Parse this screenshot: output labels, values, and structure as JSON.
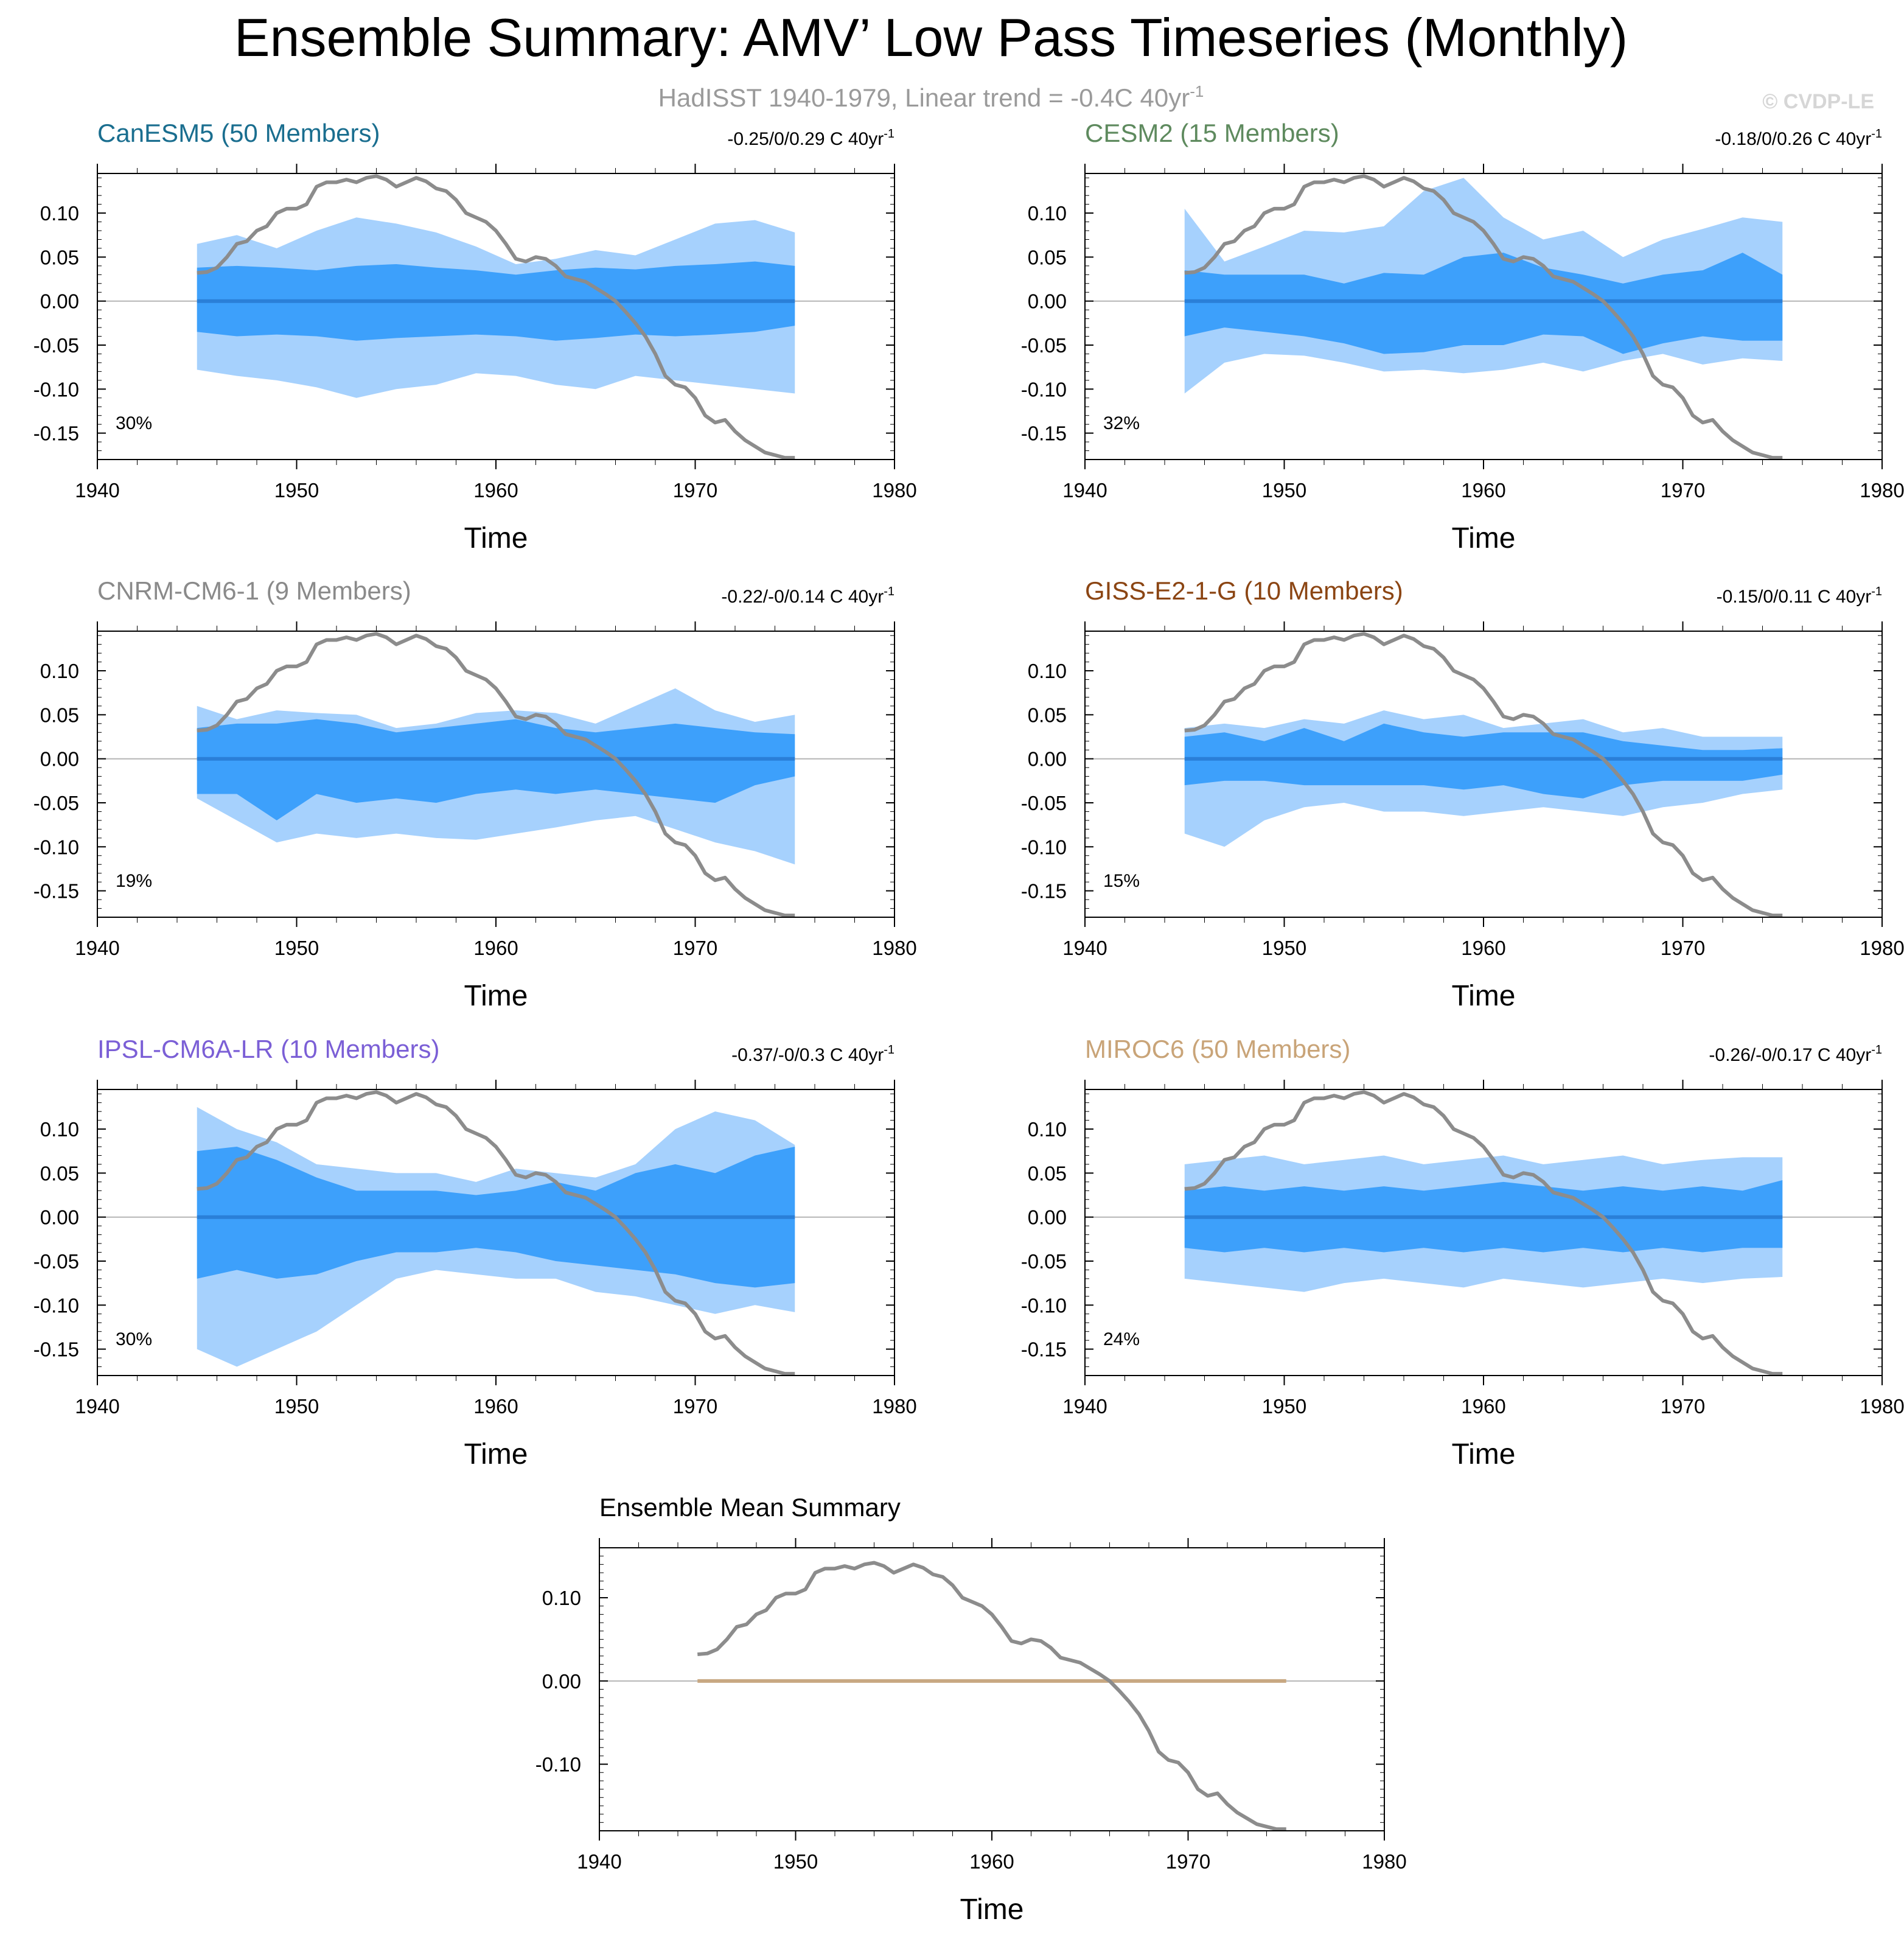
{
  "title": "Ensemble Summary: AMV’ Low Pass Timeseries (Monthly)",
  "subtitle": {
    "text": "HadISST 1940-1979, Linear trend = -0.4C 40yr",
    "superscript": "-1"
  },
  "watermark": "© CVDP-LE",
  "colors": {
    "outer_band": "#a6d1fd",
    "inner_band": "#3da0fb",
    "ensemble_mean": "#2a7fd8",
    "observations": "#8c8c8c",
    "summary_mean": "#c8a882"
  },
  "chart_data": [
    {
      "type": "area",
      "panel": "CanESM5",
      "title": "CanESM5 (50 Members)",
      "title_color": "#1a6e8f",
      "range_text": "-0.25/0/0.29 C 40yr",
      "range_sup": "-1",
      "percent": "30%",
      "xlabel": "Time",
      "xlim": [
        1940,
        1980
      ],
      "ylim": [
        -0.18,
        0.145
      ],
      "yticks": [
        "0.10",
        "0.05",
        "0.00",
        "-0.05",
        "-0.10",
        "-0.15"
      ],
      "ytick_values": [
        0.1,
        0.05,
        0.0,
        -0.05,
        -0.1,
        -0.15
      ],
      "xticks": [
        "1940",
        "1950",
        "1960",
        "1970",
        "1980"
      ],
      "xtick_values": [
        1940,
        1950,
        1960,
        1970,
        1980
      ],
      "x": [
        1945,
        1947,
        1949,
        1951,
        1953,
        1955,
        1957,
        1959,
        1961,
        1963,
        1965,
        1967,
        1969,
        1971,
        1973,
        1975
      ],
      "outer_upper": [
        0.065,
        0.075,
        0.06,
        0.08,
        0.095,
        0.088,
        0.078,
        0.062,
        0.042,
        0.048,
        0.058,
        0.052,
        0.07,
        0.088,
        0.092,
        0.078
      ],
      "outer_lower": [
        -0.078,
        -0.085,
        -0.09,
        -0.098,
        -0.11,
        -0.1,
        -0.095,
        -0.082,
        -0.085,
        -0.095,
        -0.1,
        -0.085,
        -0.09,
        -0.095,
        -0.1,
        -0.105
      ],
      "inner_upper": [
        0.038,
        0.04,
        0.038,
        0.035,
        0.04,
        0.042,
        0.038,
        0.035,
        0.03,
        0.035,
        0.038,
        0.036,
        0.04,
        0.042,
        0.045,
        0.04
      ],
      "inner_lower": [
        -0.035,
        -0.04,
        -0.038,
        -0.04,
        -0.045,
        -0.042,
        -0.04,
        -0.038,
        -0.04,
        -0.045,
        -0.042,
        -0.038,
        -0.04,
        -0.038,
        -0.035,
        -0.028
      ],
      "ensemble_mean": [
        0,
        0,
        0,
        0,
        0,
        0,
        0,
        0,
        0,
        0,
        0,
        0,
        0,
        0,
        0,
        0
      ]
    },
    {
      "type": "area",
      "panel": "CESM2",
      "title": "CESM2 (15 Members)",
      "title_color": "#5e8a5e",
      "range_text": "-0.18/0/0.26 C 40yr",
      "range_sup": "-1",
      "percent": "32%",
      "xlabel": "Time",
      "xlim": [
        1940,
        1980
      ],
      "ylim": [
        -0.18,
        0.145
      ],
      "yticks": [
        "0.10",
        "0.05",
        "0.00",
        "-0.05",
        "-0.10",
        "-0.15"
      ],
      "ytick_values": [
        0.1,
        0.05,
        0.0,
        -0.05,
        -0.1,
        -0.15
      ],
      "xticks": [
        "1940",
        "1950",
        "1960",
        "1970",
        "1980"
      ],
      "xtick_values": [
        1940,
        1950,
        1960,
        1970,
        1980
      ],
      "x": [
        1945,
        1947,
        1949,
        1951,
        1953,
        1955,
        1957,
        1959,
        1961,
        1963,
        1965,
        1967,
        1969,
        1971,
        1973,
        1975
      ],
      "outer_upper": [
        0.105,
        0.045,
        0.062,
        0.08,
        0.078,
        0.085,
        0.125,
        0.14,
        0.095,
        0.07,
        0.08,
        0.05,
        0.07,
        0.082,
        0.095,
        0.09
      ],
      "outer_lower": [
        -0.105,
        -0.07,
        -0.06,
        -0.062,
        -0.07,
        -0.08,
        -0.078,
        -0.082,
        -0.078,
        -0.07,
        -0.08,
        -0.068,
        -0.06,
        -0.072,
        -0.065,
        -0.068
      ],
      "inner_upper": [
        0.035,
        0.03,
        0.03,
        0.03,
        0.02,
        0.032,
        0.03,
        0.05,
        0.055,
        0.038,
        0.03,
        0.02,
        0.03,
        0.035,
        0.055,
        0.03
      ],
      "inner_lower": [
        -0.04,
        -0.03,
        -0.035,
        -0.04,
        -0.048,
        -0.06,
        -0.058,
        -0.05,
        -0.05,
        -0.038,
        -0.04,
        -0.06,
        -0.048,
        -0.04,
        -0.045,
        -0.045
      ],
      "ensemble_mean": [
        0,
        0,
        0,
        0,
        0,
        0,
        0,
        0,
        0,
        0,
        0,
        0,
        0,
        0,
        0,
        0
      ]
    },
    {
      "type": "area",
      "panel": "CNRM-CM6-1",
      "title": "CNRM-CM6-1 (9 Members)",
      "title_color": "#8a8a8a",
      "range_text": "-0.22/-0/0.14 C 40yr",
      "range_sup": "-1",
      "percent": "19%",
      "xlabel": "Time",
      "xlim": [
        1940,
        1980
      ],
      "ylim": [
        -0.18,
        0.145
      ],
      "yticks": [
        "0.10",
        "0.05",
        "0.00",
        "-0.05",
        "-0.10",
        "-0.15"
      ],
      "ytick_values": [
        0.1,
        0.05,
        0.0,
        -0.05,
        -0.1,
        -0.15
      ],
      "xticks": [
        "1940",
        "1950",
        "1960",
        "1970",
        "1980"
      ],
      "xtick_values": [
        1940,
        1950,
        1960,
        1970,
        1980
      ],
      "x": [
        1945,
        1947,
        1949,
        1951,
        1953,
        1955,
        1957,
        1959,
        1961,
        1963,
        1965,
        1967,
        1969,
        1971,
        1973,
        1975
      ],
      "outer_upper": [
        0.06,
        0.045,
        0.055,
        0.052,
        0.05,
        0.035,
        0.04,
        0.052,
        0.055,
        0.052,
        0.04,
        0.06,
        0.08,
        0.055,
        0.042,
        0.05
      ],
      "outer_lower": [
        -0.045,
        -0.07,
        -0.095,
        -0.085,
        -0.09,
        -0.085,
        -0.09,
        -0.092,
        -0.085,
        -0.078,
        -0.07,
        -0.065,
        -0.08,
        -0.095,
        -0.105,
        -0.12
      ],
      "inner_upper": [
        0.035,
        0.04,
        0.04,
        0.045,
        0.04,
        0.03,
        0.035,
        0.04,
        0.045,
        0.035,
        0.03,
        0.035,
        0.04,
        0.035,
        0.03,
        0.028
      ],
      "inner_lower": [
        -0.04,
        -0.04,
        -0.07,
        -0.04,
        -0.05,
        -0.045,
        -0.05,
        -0.04,
        -0.035,
        -0.04,
        -0.035,
        -0.04,
        -0.045,
        -0.05,
        -0.03,
        -0.02
      ],
      "ensemble_mean": [
        0,
        0,
        0,
        0,
        0,
        0,
        0,
        0,
        0,
        0,
        0,
        0,
        0,
        0,
        0,
        0
      ]
    },
    {
      "type": "area",
      "panel": "GISS-E2-1-G",
      "title": "GISS-E2-1-G (10 Members)",
      "title_color": "#8b4513",
      "range_text": "-0.15/0/0.11 C 40yr",
      "range_sup": "-1",
      "percent": "15%",
      "xlabel": "Time",
      "xlim": [
        1940,
        1980
      ],
      "ylim": [
        -0.18,
        0.145
      ],
      "yticks": [
        "0.10",
        "0.05",
        "0.00",
        "-0.05",
        "-0.10",
        "-0.15"
      ],
      "ytick_values": [
        0.1,
        0.05,
        0.0,
        -0.05,
        -0.1,
        -0.15
      ],
      "xticks": [
        "1940",
        "1950",
        "1960",
        "1970",
        "1980"
      ],
      "xtick_values": [
        1940,
        1950,
        1960,
        1970,
        1980
      ],
      "x": [
        1945,
        1947,
        1949,
        1951,
        1953,
        1955,
        1957,
        1959,
        1961,
        1963,
        1965,
        1967,
        1969,
        1971,
        1973,
        1975
      ],
      "outer_upper": [
        0.035,
        0.04,
        0.035,
        0.045,
        0.04,
        0.055,
        0.045,
        0.05,
        0.035,
        0.04,
        0.045,
        0.03,
        0.035,
        0.025,
        0.025,
        0.025
      ],
      "outer_lower": [
        -0.085,
        -0.1,
        -0.07,
        -0.055,
        -0.05,
        -0.06,
        -0.06,
        -0.065,
        -0.06,
        -0.055,
        -0.06,
        -0.065,
        -0.055,
        -0.05,
        -0.04,
        -0.035
      ],
      "inner_upper": [
        0.025,
        0.03,
        0.02,
        0.035,
        0.02,
        0.04,
        0.03,
        0.025,
        0.03,
        0.03,
        0.03,
        0.02,
        0.015,
        0.01,
        0.01,
        0.012
      ],
      "inner_lower": [
        -0.03,
        -0.025,
        -0.025,
        -0.03,
        -0.03,
        -0.03,
        -0.03,
        -0.035,
        -0.03,
        -0.04,
        -0.045,
        -0.03,
        -0.025,
        -0.025,
        -0.025,
        -0.018
      ],
      "ensemble_mean": [
        0,
        0,
        0,
        0,
        0,
        0,
        0,
        0,
        0,
        0,
        0,
        0,
        0,
        0,
        0,
        0
      ]
    },
    {
      "type": "area",
      "panel": "IPSL-CM6A-LR",
      "title": "IPSL-CM6A-LR (10 Members)",
      "title_color": "#7b5fd6",
      "range_text": "-0.37/-0/0.3 C 40yr",
      "range_sup": "-1",
      "percent": "30%",
      "xlabel": "Time",
      "xlim": [
        1940,
        1980
      ],
      "ylim": [
        -0.18,
        0.145
      ],
      "yticks": [
        "0.10",
        "0.05",
        "0.00",
        "-0.05",
        "-0.10",
        "-0.15"
      ],
      "ytick_values": [
        0.1,
        0.05,
        0.0,
        -0.05,
        -0.1,
        -0.15
      ],
      "xticks": [
        "1940",
        "1950",
        "1960",
        "1970",
        "1980"
      ],
      "xtick_values": [
        1940,
        1950,
        1960,
        1970,
        1980
      ],
      "x": [
        1945,
        1947,
        1949,
        1951,
        1953,
        1955,
        1957,
        1959,
        1961,
        1963,
        1965,
        1967,
        1969,
        1971,
        1973,
        1975
      ],
      "outer_upper": [
        0.125,
        0.1,
        0.085,
        0.06,
        0.055,
        0.05,
        0.05,
        0.04,
        0.055,
        0.05,
        0.045,
        0.06,
        0.1,
        0.12,
        0.11,
        0.082
      ],
      "outer_lower": [
        -0.15,
        -0.17,
        -0.15,
        -0.13,
        -0.1,
        -0.07,
        -0.06,
        -0.065,
        -0.07,
        -0.07,
        -0.085,
        -0.09,
        -0.1,
        -0.11,
        -0.1,
        -0.108
      ],
      "inner_upper": [
        0.075,
        0.08,
        0.065,
        0.045,
        0.03,
        0.03,
        0.03,
        0.025,
        0.03,
        0.04,
        0.03,
        0.05,
        0.06,
        0.05,
        0.07,
        0.08
      ],
      "inner_lower": [
        -0.07,
        -0.06,
        -0.07,
        -0.065,
        -0.05,
        -0.04,
        -0.04,
        -0.035,
        -0.04,
        -0.05,
        -0.055,
        -0.06,
        -0.065,
        -0.075,
        -0.08,
        -0.075
      ],
      "ensemble_mean": [
        0,
        0,
        0,
        0,
        0,
        0,
        0,
        0,
        0,
        0,
        0,
        0,
        0,
        0,
        0,
        0
      ]
    },
    {
      "type": "area",
      "panel": "MIROC6",
      "title": "MIROC6 (50 Members)",
      "title_color": "#c9a478",
      "range_text": "-0.26/-0/0.17 C 40yr",
      "range_sup": "-1",
      "percent": "24%",
      "xlabel": "Time",
      "xlim": [
        1940,
        1980
      ],
      "ylim": [
        -0.18,
        0.145
      ],
      "yticks": [
        "0.10",
        "0.05",
        "0.00",
        "-0.05",
        "-0.10",
        "-0.15"
      ],
      "ytick_values": [
        0.1,
        0.05,
        0.0,
        -0.05,
        -0.1,
        -0.15
      ],
      "xticks": [
        "1940",
        "1950",
        "1960",
        "1970",
        "1980"
      ],
      "xtick_values": [
        1940,
        1950,
        1960,
        1970,
        1980
      ],
      "x": [
        1945,
        1947,
        1949,
        1951,
        1953,
        1955,
        1957,
        1959,
        1961,
        1963,
        1965,
        1967,
        1969,
        1971,
        1973,
        1975
      ],
      "outer_upper": [
        0.06,
        0.065,
        0.07,
        0.06,
        0.065,
        0.07,
        0.06,
        0.065,
        0.07,
        0.06,
        0.065,
        0.07,
        0.06,
        0.065,
        0.068,
        0.068
      ],
      "outer_lower": [
        -0.07,
        -0.075,
        -0.08,
        -0.085,
        -0.075,
        -0.07,
        -0.075,
        -0.08,
        -0.07,
        -0.075,
        -0.08,
        -0.075,
        -0.07,
        -0.075,
        -0.07,
        -0.068
      ],
      "inner_upper": [
        0.03,
        0.035,
        0.03,
        0.035,
        0.03,
        0.035,
        0.03,
        0.035,
        0.04,
        0.035,
        0.03,
        0.035,
        0.03,
        0.035,
        0.03,
        0.042
      ],
      "inner_lower": [
        -0.035,
        -0.04,
        -0.035,
        -0.04,
        -0.035,
        -0.04,
        -0.035,
        -0.04,
        -0.035,
        -0.04,
        -0.035,
        -0.04,
        -0.035,
        -0.04,
        -0.035,
        -0.035
      ],
      "ensemble_mean": [
        0,
        0,
        0,
        0,
        0,
        0,
        0,
        0,
        0,
        0,
        0,
        0,
        0,
        0,
        0,
        0
      ]
    },
    {
      "type": "line",
      "panel": "Ensemble Mean Summary",
      "title": "Ensemble Mean Summary",
      "title_color": "#000000",
      "xlabel": "Time",
      "xlim": [
        1940,
        1980
      ],
      "ylim": [
        -0.18,
        0.16
      ],
      "yticks": [
        "0.10",
        "0.00",
        "-0.10"
      ],
      "ytick_values": [
        0.1,
        0.0,
        -0.1
      ],
      "xticks": [
        "1940",
        "1950",
        "1960",
        "1970",
        "1980"
      ],
      "xtick_values": [
        1940,
        1950,
        1960,
        1970,
        1980
      ],
      "series": [
        {
          "name": "Ensemble means",
          "x": [
            1945,
            1975
          ],
          "values": [
            0,
            0
          ]
        }
      ]
    }
  ],
  "observations": {
    "name": "HadISST",
    "x": [
      1945.0,
      1945.5,
      1946.0,
      1946.5,
      1947.0,
      1947.5,
      1948.0,
      1948.5,
      1949.0,
      1949.5,
      1950.0,
      1950.5,
      1951.0,
      1951.5,
      1952.0,
      1952.5,
      1953.0,
      1953.5,
      1954.0,
      1954.5,
      1955.0,
      1955.5,
      1956.0,
      1956.5,
      1957.0,
      1957.5,
      1958.0,
      1958.5,
      1959.0,
      1959.5,
      1960.0,
      1960.5,
      1961.0,
      1961.5,
      1962.0,
      1962.5,
      1963.0,
      1963.5,
      1964.0,
      1964.5,
      1965.0,
      1965.5,
      1966.0,
      1966.5,
      1967.0,
      1967.5,
      1968.0,
      1968.5,
      1969.0,
      1969.5,
      1970.0,
      1970.5,
      1971.0,
      1971.5,
      1972.0,
      1972.5,
      1973.0,
      1973.5,
      1974.0,
      1974.5,
      1975.0
    ],
    "values": [
      0.032,
      0.033,
      0.038,
      0.05,
      0.065,
      0.068,
      0.08,
      0.085,
      0.1,
      0.105,
      0.105,
      0.11,
      0.13,
      0.135,
      0.135,
      0.138,
      0.135,
      0.14,
      0.142,
      0.138,
      0.13,
      0.135,
      0.14,
      0.136,
      0.128,
      0.125,
      0.115,
      0.1,
      0.095,
      0.09,
      0.08,
      0.065,
      0.048,
      0.045,
      0.05,
      0.048,
      0.04,
      0.028,
      0.025,
      0.022,
      0.015,
      0.008,
      0.0,
      -0.012,
      -0.025,
      -0.04,
      -0.06,
      -0.085,
      -0.095,
      -0.098,
      -0.11,
      -0.13,
      -0.138,
      -0.135,
      -0.148,
      -0.158,
      -0.165,
      -0.172,
      -0.175,
      -0.178,
      -0.178
    ]
  }
}
